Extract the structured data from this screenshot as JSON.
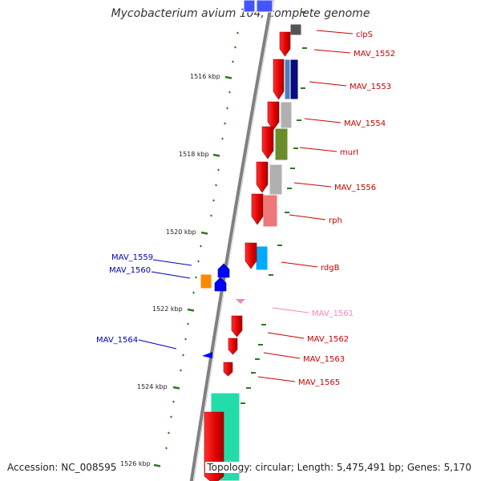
{
  "title": "Mycobacterium avium 104, complete genome",
  "footer": {
    "accession": "Accession: NC_008595",
    "topology": "Topology: circular; Length: 5,475,491 bp; Genes: 5,170"
  },
  "colors": {
    "backbone": "#808080",
    "forward_label": "#cc0000",
    "reverse_label": "#0000bb",
    "tick": "#2a7a1e",
    "misc_label": "#ff80bb"
  },
  "ruler": {
    "major_ticks": [
      "1516 kbp",
      "1518 kbp",
      "1520 kbp",
      "1522 kbp",
      "1524 kbp",
      "1526 kbp"
    ]
  },
  "genes_forward": [
    {
      "label": "clpS",
      "color": "#ff0000"
    },
    {
      "label": "MAV_1552",
      "color": "#ff0000"
    },
    {
      "label": "MAV_1553",
      "color": "#ff0000"
    },
    {
      "label": "MAV_1554",
      "color": "#ff0000"
    },
    {
      "label": "murI",
      "color": "#ff0000"
    },
    {
      "label": "MAV_1556",
      "color": "#ff0000"
    },
    {
      "label": "rph",
      "color": "#ff0000"
    },
    {
      "label": "rdgB",
      "color": "#ff0000"
    },
    {
      "label": "MAV_1561",
      "color": "#ff80bb"
    },
    {
      "label": "MAV_1562",
      "color": "#ff0000"
    },
    {
      "label": "MAV_1563",
      "color": "#ff0000"
    },
    {
      "label": "MAV_1565",
      "color": "#ff0000"
    }
  ],
  "genes_reverse": [
    {
      "label": "MAV_1559",
      "color": "#0000ff"
    },
    {
      "label": "MAV_1560",
      "color": "#0000ff"
    },
    {
      "label": "MAV_1564",
      "color": "#0000ff"
    }
  ],
  "cog_colors": [
    "#555555",
    "#4a7fc0",
    "#0a0a80",
    "#b0b0b0",
    "#6b8c2a",
    "#ee7777",
    "#00aaff",
    "#ff8800",
    "#22ddaa",
    "#4455ff"
  ]
}
